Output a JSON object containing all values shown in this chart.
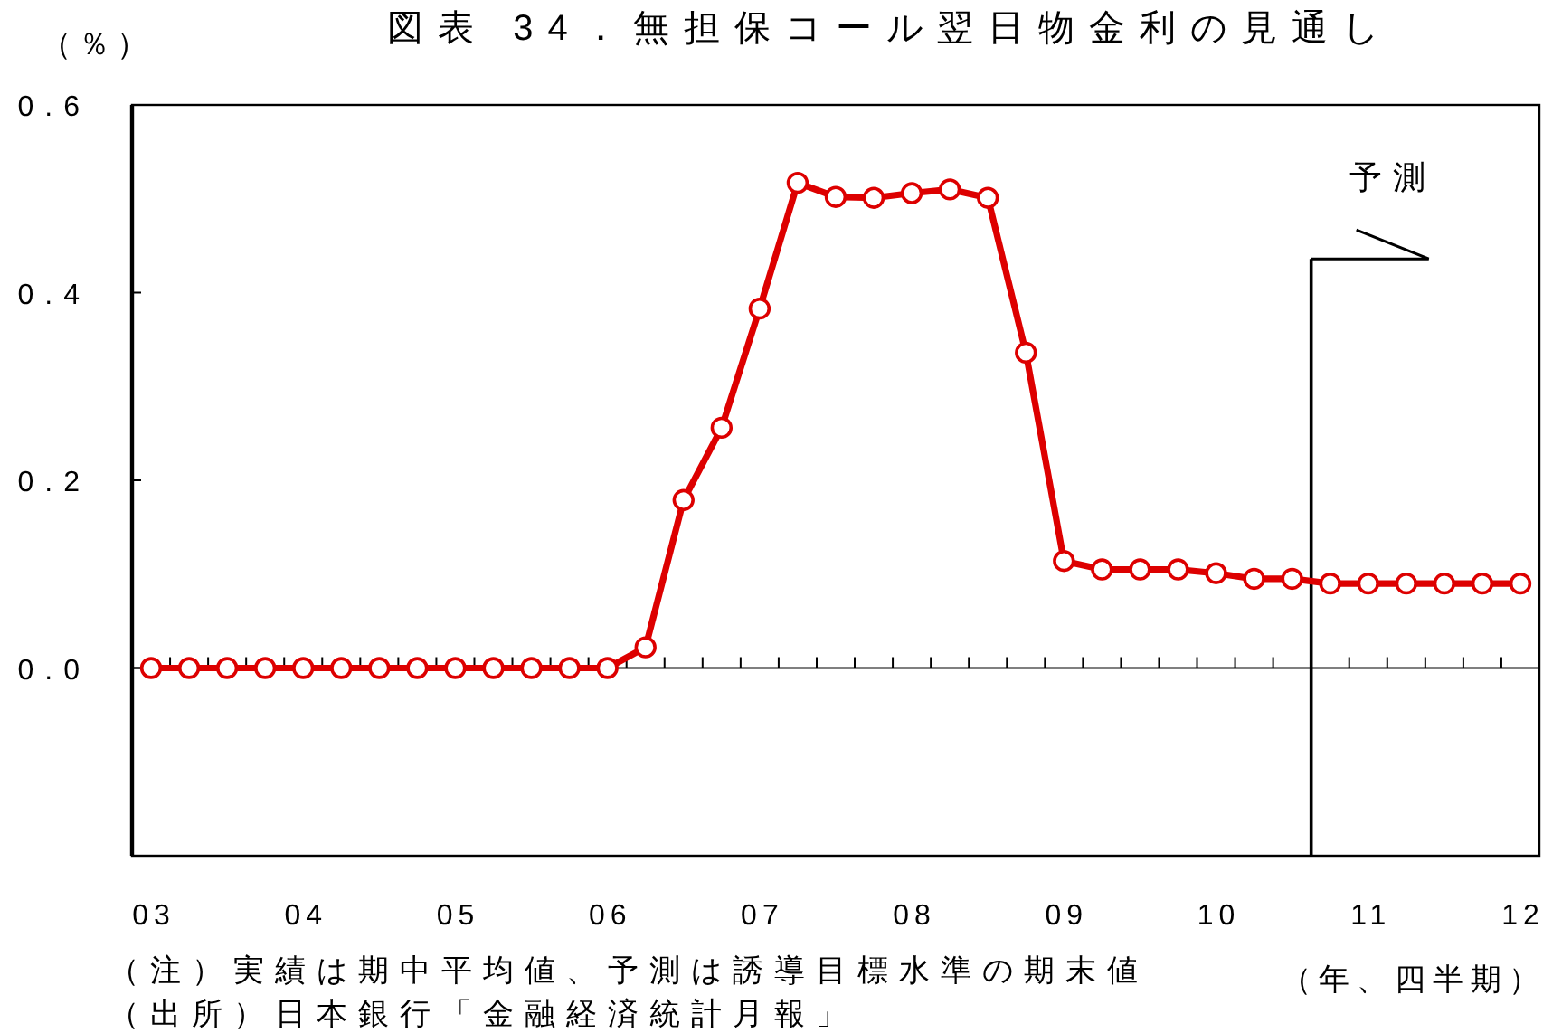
{
  "chart_data": {
    "type": "line",
    "title": "図表 34．無担保コール翌日物金利の見通し",
    "ylabel": "（％）",
    "xlabel": "（年、四半期）",
    "annotations": [
      "（注）実績は期中平均値、予測は誘導目標水準の期末値",
      "（出所）日本銀行「金融経済統計月報」"
    ],
    "x": [
      2003,
      2003.25,
      2003.5,
      2003.75,
      2004,
      2004.25,
      2004.5,
      2004.75,
      2005,
      2005.25,
      2005.5,
      2005.75,
      2006,
      2006.25,
      2006.5,
      2006.75,
      2007,
      2007.25,
      2007.5,
      2007.75,
      2008,
      2008.25,
      2008.5,
      2008.75,
      2009,
      2009.25,
      2009.5,
      2009.75,
      2010,
      2010.25,
      2010.5,
      2010.75,
      2011,
      2011.25,
      2011.5,
      2011.75,
      2012
    ],
    "series": [
      {
        "color": "#dd0000",
        "values": [
          0,
          0,
          0,
          0,
          0,
          0,
          0,
          0,
          0,
          0,
          0,
          0,
          0,
          0.022,
          0.179,
          0.256,
          0.383,
          0.517,
          0.502,
          0.501,
          0.506,
          0.51,
          0.501,
          0.336,
          0.114,
          0.105,
          0.105,
          0.105,
          0.101,
          0.095,
          0.095,
          0.09,
          0.09,
          0.09,
          0.09,
          0.09,
          0.09
        ]
      }
    ],
    "xlim": [
      2002.875,
      2012.125
    ],
    "xticks": [
      {
        "value": 2003,
        "label": "03"
      },
      {
        "value": 2004,
        "label": "04"
      },
      {
        "value": 2005,
        "label": "05"
      },
      {
        "value": 2006,
        "label": "06"
      },
      {
        "value": 2007,
        "label": "07"
      },
      {
        "value": 2008,
        "label": "08"
      },
      {
        "value": 2009,
        "label": "09"
      },
      {
        "value": 2010,
        "label": "10"
      },
      {
        "value": 2011,
        "label": "11"
      },
      {
        "value": 2012,
        "label": "12"
      },
      {
        "value": 2003.125,
        "label": null
      },
      {
        "value": 2003.375,
        "label": null
      },
      {
        "value": 2003.625,
        "label": null
      },
      {
        "value": 2003.875,
        "label": null
      },
      {
        "value": 2004.125,
        "label": null
      },
      {
        "value": 2004.375,
        "label": null
      },
      {
        "value": 2004.625,
        "label": null
      },
      {
        "value": 2004.875,
        "label": null
      },
      {
        "value": 2005.125,
        "label": null
      },
      {
        "value": 2005.375,
        "label": null
      },
      {
        "value": 2005.625,
        "label": null
      },
      {
        "value": 2005.875,
        "label": null
      },
      {
        "value": 2006.125,
        "label": null
      },
      {
        "value": 2006.375,
        "label": null
      },
      {
        "value": 2006.625,
        "label": null
      },
      {
        "value": 2006.875,
        "label": null
      },
      {
        "value": 2007.125,
        "label": null
      },
      {
        "value": 2007.375,
        "label": null
      },
      {
        "value": 2007.625,
        "label": null
      },
      {
        "value": 2007.875,
        "label": null
      },
      {
        "value": 2008.125,
        "label": null
      },
      {
        "value": 2008.375,
        "label": null
      },
      {
        "value": 2008.625,
        "label": null
      },
      {
        "value": 2008.875,
        "label": null
      },
      {
        "value": 2009.125,
        "label": null
      },
      {
        "value": 2009.375,
        "label": null
      },
      {
        "value": 2009.625,
        "label": null
      },
      {
        "value": 2009.875,
        "label": null
      },
      {
        "value": 2010.125,
        "label": null
      },
      {
        "value": 2010.375,
        "label": null
      },
      {
        "value": 2010.625,
        "label": null
      },
      {
        "value": 2010.875,
        "label": null
      },
      {
        "value": 2011.125,
        "label": null
      },
      {
        "value": 2011.375,
        "label": null
      },
      {
        "value": 2011.625,
        "label": null
      },
      {
        "value": 2011.875,
        "label": null
      }
    ],
    "ylim": [
      -0.2,
      0.6
    ],
    "yticks": [
      {
        "value": -0.2,
        "label": null
      },
      {
        "value": 0,
        "label": "0.0"
      },
      {
        "value": 0.2,
        "label": "0.2"
      },
      {
        "value": 0.4,
        "label": "0.4"
      },
      {
        "value": 0.6,
        "label": "0.6"
      }
    ],
    "ref_lines": [
      {
        "axis": "x",
        "value": 2010.625,
        "label": "予測",
        "color": "#000000"
      }
    ],
    "marker": "circle",
    "line_style": "solid"
  }
}
